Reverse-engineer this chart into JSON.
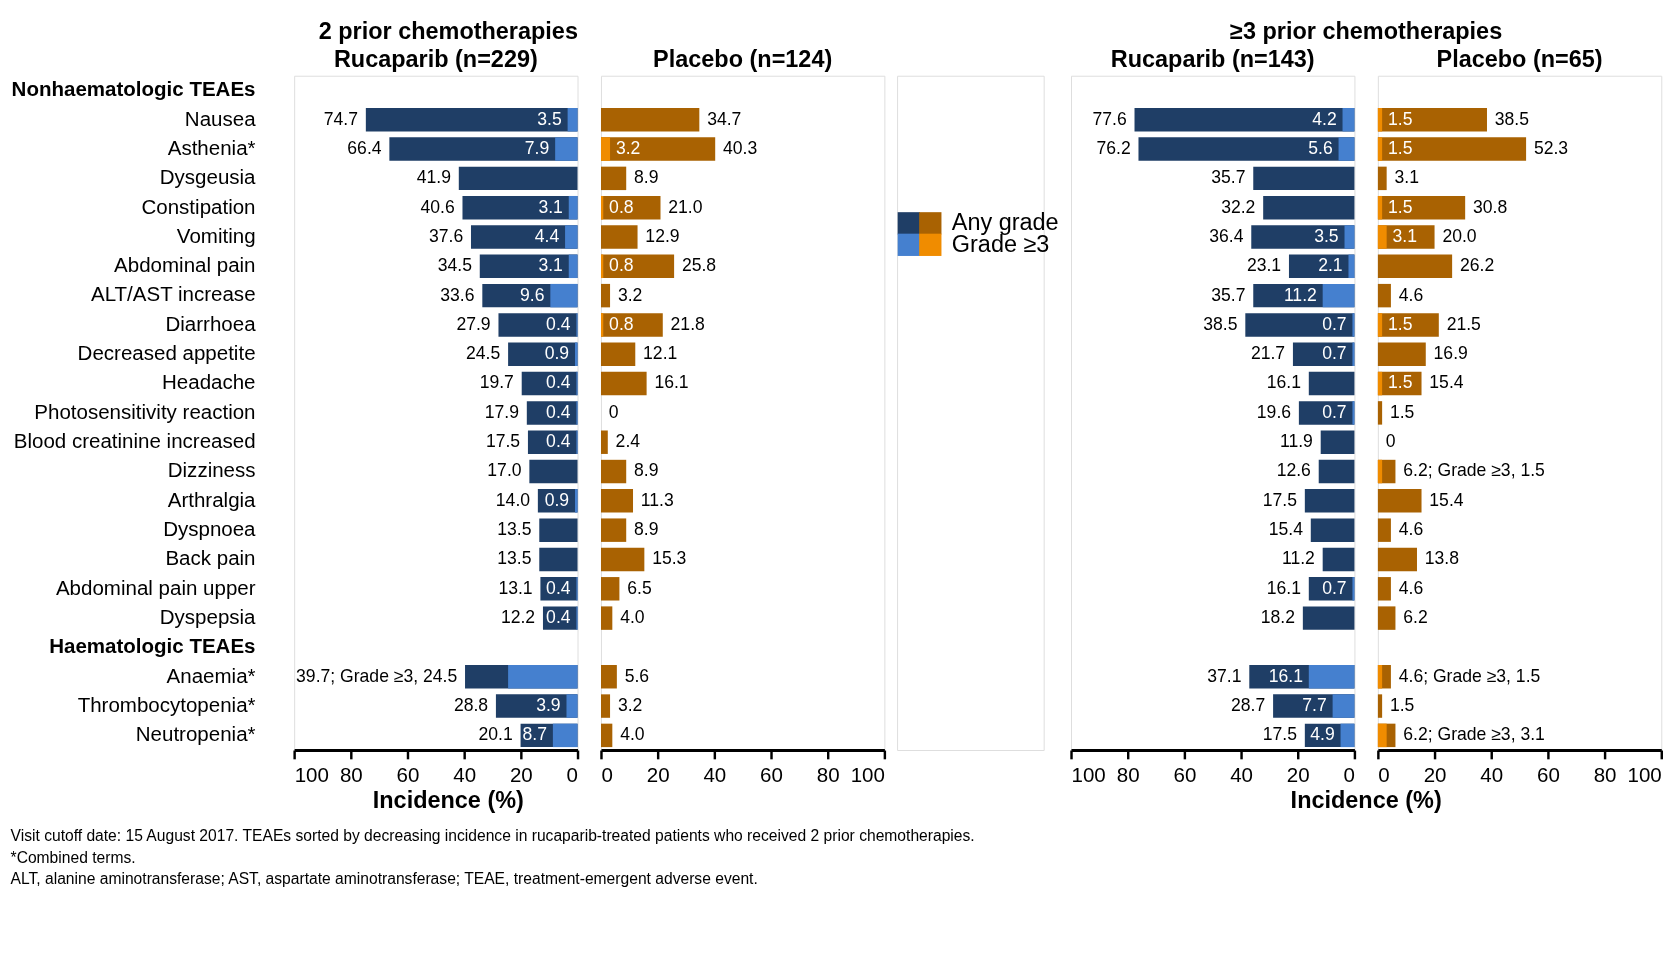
{
  "chart_data": [
    {
      "type": "bar",
      "orientation": "horizontal",
      "title": "2 prior chemotherapies",
      "subtitle": "Rucaparib (n=229)",
      "xlabel": "Incidence (%)",
      "xlim": [
        100,
        0
      ],
      "xticks": [
        100,
        80,
        60,
        40,
        20,
        0
      ],
      "legend": "right",
      "categories": [
        "Nonhaematologic TEAEs",
        "Nausea",
        "Asthenia*",
        "Dysgeusia",
        "Constipation",
        "Vomiting",
        "Abdominal pain",
        "ALT/AST increase",
        "Diarrhoea",
        "Decreased appetite",
        "Headache",
        "Photosensitivity reaction",
        "Blood creatinine increased",
        "Dizziness",
        "Arthralgia",
        "Dyspnoea",
        "Back pain",
        "Abdominal pain upper",
        "Dyspepsia",
        "Haematologic TEAEs",
        "Anaemia*",
        "Thrombocytopenia*",
        "Neutropenia*"
      ],
      "series": [
        {
          "name": "Any grade",
          "color": "#1f3e66",
          "values": [
            null,
            74.7,
            66.4,
            41.9,
            40.6,
            37.6,
            34.5,
            33.6,
            27.9,
            24.5,
            19.7,
            17.9,
            17.5,
            17.0,
            14.0,
            13.5,
            13.5,
            13.1,
            12.2,
            null,
            39.7,
            28.8,
            20.1
          ],
          "value_labels": [
            null,
            "74.7",
            "66.4",
            "41.9",
            "40.6",
            "37.6",
            "34.5",
            "33.6",
            "27.9",
            "24.5",
            "19.7",
            "17.9",
            "17.5",
            "17.0",
            "14.0",
            "13.5",
            "13.5",
            "13.1",
            "12.2",
            null,
            "39.7; Grade ≥3, 24.5",
            "28.8",
            "20.1"
          ]
        },
        {
          "name": "Grade ≥3",
          "color": "#4580cf",
          "values": [
            null,
            3.5,
            7.9,
            null,
            3.1,
            4.4,
            3.1,
            9.6,
            0.4,
            0.9,
            0.4,
            0.4,
            0.4,
            null,
            0.9,
            null,
            null,
            0.4,
            0.4,
            null,
            24.5,
            3.9,
            8.7
          ],
          "value_labels": [
            null,
            "3.5",
            "7.9",
            null,
            "3.1",
            "4.4",
            "3.1",
            "9.6",
            "0.4",
            "0.9",
            "0.4",
            "0.4",
            "0.4",
            null,
            "0.9",
            null,
            null,
            "0.4",
            "0.4",
            null,
            null,
            "3.9",
            "8.7"
          ]
        }
      ],
      "annotations": [
        "Visit cutoff date: 15 August 2017. TEAEs sorted by decreasing incidence in rucaparib-treated patients who received 2 prior chemotherapies.",
        "*Combined terms.",
        "ALT, alanine aminotransferase; AST, aspartate aminotransferase; TEAE, treatment-emergent adverse event."
      ]
    },
    {
      "type": "bar",
      "orientation": "horizontal",
      "subtitle": "Placebo (n=124)",
      "xlim": [
        0,
        100
      ],
      "xticks": [
        0,
        20,
        40,
        60,
        80,
        100
      ],
      "tick_labels": "x",
      "legend": "right",
      "categories": [
        "Nonhaematologic TEAEs",
        "Nausea",
        "Asthenia*",
        "Dysgeusia",
        "Constipation",
        "Vomiting",
        "Abdominal pain",
        "ALT/AST increase",
        "Diarrhoea",
        "Decreased appetite",
        "Headache",
        "Photosensitivity reaction",
        "Blood creatinine increased",
        "Dizziness",
        "Arthralgia",
        "Dyspnoea",
        "Back pain",
        "Abdominal pain upper",
        "Dyspepsia",
        "Haematologic TEAEs",
        "Anaemia*",
        "Thrombocytopenia*",
        "Neutropenia*"
      ],
      "series": [
        {
          "name": "Any grade",
          "color": "#a96202",
          "values": [
            null,
            34.7,
            40.3,
            8.9,
            21.0,
            12.9,
            25.8,
            3.2,
            21.8,
            12.1,
            16.1,
            0,
            2.4,
            8.9,
            11.3,
            8.9,
            15.3,
            6.5,
            4.0,
            null,
            5.6,
            3.2,
            4.0
          ],
          "value_labels": [
            null,
            "34.7",
            "40.3",
            "8.9",
            "21.0",
            "12.9",
            "25.8",
            "3.2",
            "21.8",
            "12.1",
            "16.1",
            "0",
            "2.4",
            "8.9",
            "11.3",
            "8.9",
            "15.3",
            "6.5",
            "4.0",
            null,
            "5.6",
            "3.2",
            "4.0"
          ]
        },
        {
          "name": "Grade ≥3",
          "color": "#f08c00",
          "values": [
            null,
            null,
            3.2,
            null,
            0.8,
            null,
            0.8,
            null,
            0.8,
            null,
            null,
            null,
            null,
            null,
            null,
            null,
            null,
            null,
            null,
            null,
            null,
            null,
            null
          ],
          "value_labels": [
            null,
            null,
            "3.2",
            null,
            "0.8",
            null,
            "0.8",
            null,
            "0.8",
            null,
            null,
            null,
            null,
            null,
            null,
            null,
            null,
            null,
            null,
            null,
            null,
            null,
            null
          ]
        }
      ]
    },
    {
      "type": "bar",
      "orientation": "horizontal",
      "title": "≥3 prior chemotherapies",
      "subtitle": "Rucaparib (n=143)",
      "xlabel": "Incidence (%)",
      "xlim": [
        100,
        0
      ],
      "xticks": [
        100,
        80,
        60,
        40,
        20,
        0
      ],
      "tick_labels": "x",
      "categories": [
        "Nonhaematologic TEAEs",
        "Nausea",
        "Asthenia*",
        "Dysgeusia",
        "Constipation",
        "Vomiting",
        "Abdominal pain",
        "ALT/AST increase",
        "Diarrhoea",
        "Decreased appetite",
        "Headache",
        "Photosensitivity reaction",
        "Blood creatinine increased",
        "Dizziness",
        "Arthralgia",
        "Dyspnoea",
        "Back pain",
        "Abdominal pain upper",
        "Dyspepsia",
        "Haematologic TEAEs",
        "Anaemia*",
        "Thrombocytopenia*",
        "Neutropenia*"
      ],
      "series": [
        {
          "name": "Any grade",
          "color": "#1f3e66",
          "values": [
            null,
            77.6,
            76.2,
            35.7,
            32.2,
            36.4,
            23.1,
            35.7,
            38.5,
            21.7,
            16.1,
            19.6,
            11.9,
            12.6,
            17.5,
            15.4,
            11.2,
            16.1,
            18.2,
            null,
            37.1,
            28.7,
            17.5
          ],
          "value_labels": [
            null,
            "77.6",
            "76.2",
            "35.7",
            "32.2",
            "36.4",
            "23.1",
            "35.7",
            "38.5",
            "21.7",
            "16.1",
            "19.6",
            "11.9",
            "12.6",
            "17.5",
            "15.4",
            "11.2",
            "16.1",
            "18.2",
            null,
            "37.1",
            "28.7",
            "17.5"
          ]
        },
        {
          "name": "Grade ≥3",
          "color": "#4580cf",
          "values": [
            null,
            4.2,
            5.6,
            null,
            null,
            3.5,
            2.1,
            11.2,
            0.7,
            0.7,
            null,
            0.7,
            null,
            null,
            null,
            null,
            null,
            0.7,
            null,
            null,
            16.1,
            7.7,
            4.9
          ],
          "value_labels": [
            null,
            "4.2",
            "5.6",
            null,
            null,
            "3.5",
            "2.1",
            "11.2",
            "0.7",
            "0.7",
            null,
            "0.7",
            null,
            null,
            null,
            null,
            null,
            "0.7",
            null,
            null,
            "16.1",
            "7.7",
            "4.9"
          ]
        }
      ]
    },
    {
      "type": "bar",
      "orientation": "horizontal",
      "subtitle": "Placebo (n=65)",
      "xlim": [
        0,
        100
      ],
      "xticks": [
        0,
        20,
        40,
        60,
        80,
        100
      ],
      "tick_labels": "x",
      "categories": [
        "Nonhaematologic TEAEs",
        "Nausea",
        "Asthenia*",
        "Dysgeusia",
        "Constipation",
        "Vomiting",
        "Abdominal pain",
        "ALT/AST increase",
        "Diarrhoea",
        "Decreased appetite",
        "Headache",
        "Photosensitivity reaction",
        "Blood creatinine increased",
        "Dizziness",
        "Arthralgia",
        "Dyspnoea",
        "Back pain",
        "Abdominal pain upper",
        "Dyspepsia",
        "Haematologic TEAEs",
        "Anaemia*",
        "Thrombocytopenia*",
        "Neutropenia*"
      ],
      "series": [
        {
          "name": "Any grade",
          "color": "#a96202",
          "values": [
            null,
            38.5,
            52.3,
            3.1,
            30.8,
            20.0,
            26.2,
            4.6,
            21.5,
            16.9,
            15.4,
            1.5,
            0,
            6.2,
            15.4,
            4.6,
            13.8,
            4.6,
            6.2,
            null,
            4.6,
            1.5,
            6.2
          ],
          "value_labels": [
            null,
            "38.5",
            "52.3",
            "3.1",
            "30.8",
            "20.0",
            "26.2",
            "4.6",
            "21.5",
            "16.9",
            "15.4",
            "1.5",
            "0",
            "6.2; Grade ≥3, 1.5",
            "15.4",
            "4.6",
            "13.8",
            "4.6",
            "6.2",
            null,
            "4.6; Grade ≥3, 1.5",
            "1.5",
            "6.2; Grade ≥3, 3.1"
          ]
        },
        {
          "name": "Grade ≥3",
          "color": "#f08c00",
          "values": [
            null,
            1.5,
            1.5,
            null,
            1.5,
            3.1,
            null,
            null,
            1.5,
            null,
            1.5,
            null,
            null,
            1.5,
            null,
            null,
            null,
            null,
            null,
            null,
            1.5,
            null,
            3.1
          ],
          "value_labels": [
            null,
            "1.5",
            "1.5",
            null,
            "1.5",
            "3.1",
            null,
            null,
            "1.5",
            null,
            "1.5",
            null,
            null,
            null,
            null,
            null,
            null,
            null,
            null,
            null,
            null,
            null,
            null
          ]
        }
      ]
    }
  ]
}
